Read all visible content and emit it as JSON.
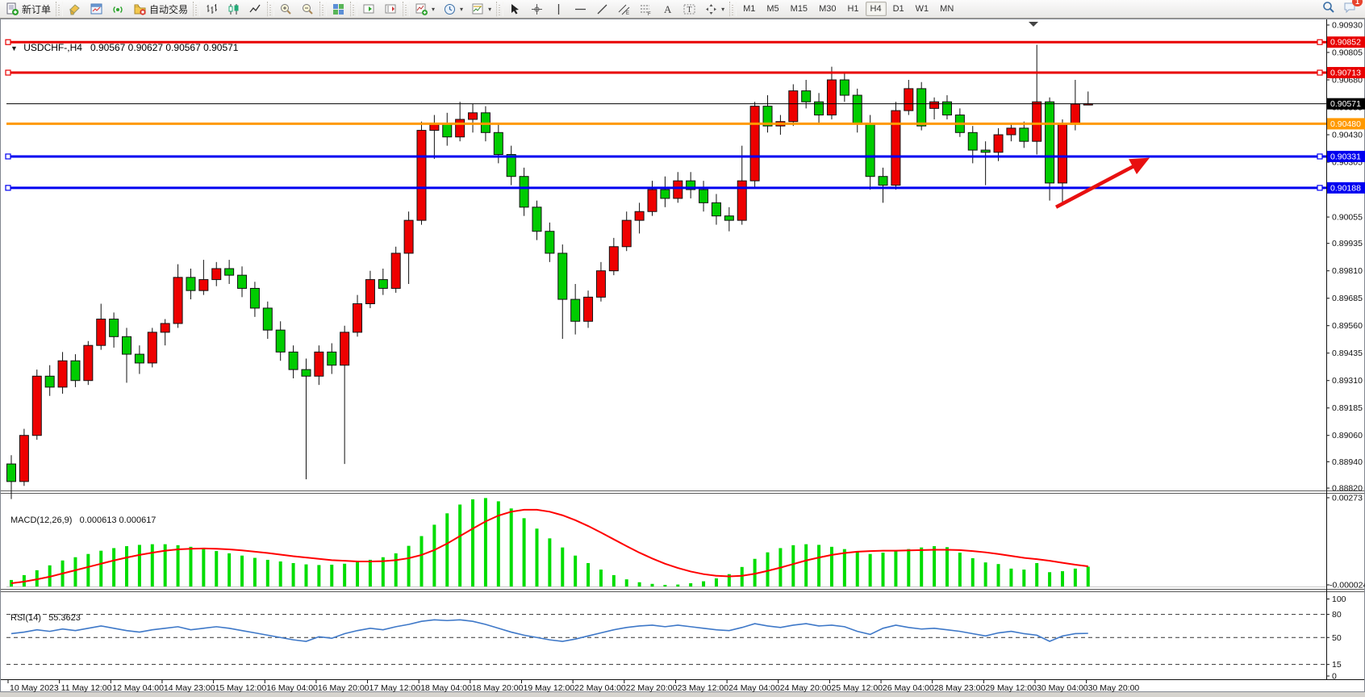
{
  "toolbar": {
    "new_order_label": "新订单",
    "autotrading_label": "自动交易",
    "groups": [
      {
        "items": [
          {
            "icon": "new-order-icon",
            "label_key": "new_order_label"
          }
        ]
      },
      {
        "items": [
          {
            "icon": "styles-icon"
          },
          {
            "icon": "chart-window-icon"
          },
          {
            "icon": "signal-icon"
          },
          {
            "icon": "autotrading-icon",
            "label_key": "autotrading_label"
          }
        ]
      },
      {
        "items": [
          {
            "icon": "bar-chart-icon"
          },
          {
            "icon": "candlestick-icon"
          },
          {
            "icon": "line-chart-icon"
          }
        ]
      },
      {
        "items": [
          {
            "icon": "zoom-in-icon"
          },
          {
            "icon": "zoom-out-icon"
          }
        ]
      },
      {
        "items": [
          {
            "icon": "tile-windows-icon"
          }
        ]
      },
      {
        "items": [
          {
            "icon": "auto-scroll-icon"
          },
          {
            "icon": "chart-shift-icon"
          }
        ]
      },
      {
        "items": [
          {
            "icon": "indicators-icon",
            "dropdown": true
          },
          {
            "icon": "periods-icon",
            "dropdown": true
          },
          {
            "icon": "template-icon",
            "dropdown": true
          }
        ]
      },
      {
        "items": [
          {
            "icon": "cursor-icon"
          },
          {
            "icon": "crosshair-icon"
          },
          {
            "icon": "vline-icon"
          },
          {
            "icon": "hline-icon"
          },
          {
            "icon": "trendline-icon"
          },
          {
            "icon": "channel-icon"
          },
          {
            "icon": "fibo-icon"
          },
          {
            "icon": "text-icon"
          },
          {
            "icon": "label-icon"
          },
          {
            "icon": "shapes-icon",
            "dropdown": true
          }
        ]
      }
    ],
    "timeframes": [
      {
        "label": "M1"
      },
      {
        "label": "M5"
      },
      {
        "label": "M15"
      },
      {
        "label": "M30"
      },
      {
        "label": "H1"
      },
      {
        "label": "H4",
        "active": true
      },
      {
        "label": "D1"
      },
      {
        "label": "W1"
      },
      {
        "label": "MN"
      }
    ],
    "chat_badge": "1"
  },
  "chart": {
    "title": "USDCHF-,H4",
    "ohlc_text": "0.90567 0.90627 0.90567 0.90571"
  },
  "chart_data": {
    "type": "candlestick",
    "symbol": "USDCHF-",
    "period": "H4",
    "current": {
      "open": "0.90567",
      "high": "0.90627",
      "low": "0.90567",
      "close": "0.90571"
    },
    "colors": {
      "bull": "#ee0000",
      "bear": "#00cc00",
      "wick": "#111111",
      "macd_hist": "#00dd00",
      "macd_signal": "#ff0000",
      "rsi_line": "#3e78c8",
      "hline_red": "#e80000",
      "hline_blue": "#0000f0",
      "hline_orange": "#ff9900",
      "bid_line": "#000000",
      "arrow": "#e81010",
      "bull_badge": "#e80000",
      "bear_badge": "#0000f0"
    },
    "y_axis": {
      "ticks": [
        0.9093,
        0.90805,
        0.9068,
        0.90555,
        0.9043,
        0.90305,
        0.9018,
        0.90055,
        0.89935,
        0.8981,
        0.89685,
        0.8956,
        0.89435,
        0.8931,
        0.89185,
        0.8906,
        0.8894,
        0.8882
      ]
    },
    "x_labels": [
      "10 May 2023",
      "11 May 12:00",
      "12 May 04:00",
      "14 May 23:00",
      "15 May 12:00",
      "16 May 04:00",
      "16 May 20:00",
      "17 May 12:00",
      "18 May 04:00",
      "18 May 20:00",
      "19 May 12:00",
      "22 May 04:00",
      "22 May 20:00",
      "23 May 12:00",
      "24 May 04:00",
      "24 May 20:00",
      "25 May 12:00",
      "26 May 04:00",
      "28 May 23:00",
      "29 May 12:00",
      "30 May 04:00",
      "30 May 20:00"
    ],
    "hlines": [
      {
        "price": 0.90852,
        "label": "0.90852",
        "color": "red",
        "width": 3,
        "handles": true
      },
      {
        "price": 0.90713,
        "label": "0.90713",
        "color": "red",
        "width": 3,
        "handles": true
      },
      {
        "price": 0.90571,
        "label": "0.90571",
        "color": "black",
        "width": 1,
        "handles": false
      },
      {
        "price": 0.9048,
        "label": "0.90480",
        "color": "orange",
        "width": 3,
        "handles": false
      },
      {
        "price": 0.90331,
        "label": "0.90331",
        "color": "blue",
        "width": 3,
        "handles": true
      },
      {
        "price": 0.90188,
        "label": "0.90188",
        "color": "blue",
        "width": 3,
        "handles": true
      }
    ],
    "arrow": {
      "from": {
        "bar": 81.5,
        "price": 0.901
      },
      "to": {
        "bar": 88.8,
        "price": 0.90325
      }
    },
    "candles": [
      [
        0.8893,
        0.8897,
        0.8877,
        0.8885
      ],
      [
        0.8885,
        0.8909,
        0.8883,
        0.8906
      ],
      [
        0.8906,
        0.8936,
        0.8904,
        0.8933
      ],
      [
        0.8933,
        0.8938,
        0.8924,
        0.8928
      ],
      [
        0.8928,
        0.8944,
        0.8925,
        0.894
      ],
      [
        0.894,
        0.8943,
        0.8928,
        0.8931
      ],
      [
        0.8931,
        0.8949,
        0.8929,
        0.8947
      ],
      [
        0.8947,
        0.8966,
        0.8945,
        0.8959
      ],
      [
        0.8959,
        0.8962,
        0.8946,
        0.8951
      ],
      [
        0.8951,
        0.8955,
        0.893,
        0.8943
      ],
      [
        0.8943,
        0.8947,
        0.8934,
        0.8939
      ],
      [
        0.8939,
        0.8955,
        0.8937,
        0.8953
      ],
      [
        0.8953,
        0.8959,
        0.8947,
        0.8957
      ],
      [
        0.8957,
        0.8984,
        0.8955,
        0.8978
      ],
      [
        0.8978,
        0.8982,
        0.8968,
        0.8972
      ],
      [
        0.8972,
        0.8986,
        0.897,
        0.8977
      ],
      [
        0.8977,
        0.8985,
        0.8974,
        0.8982
      ],
      [
        0.8982,
        0.8986,
        0.8975,
        0.8979
      ],
      [
        0.8979,
        0.8983,
        0.8969,
        0.8973
      ],
      [
        0.8973,
        0.8976,
        0.896,
        0.8964
      ],
      [
        0.8964,
        0.8967,
        0.895,
        0.8954
      ],
      [
        0.8954,
        0.8958,
        0.894,
        0.8944
      ],
      [
        0.8944,
        0.8947,
        0.8932,
        0.8936
      ],
      [
        0.8936,
        0.8941,
        0.8886,
        0.8933
      ],
      [
        0.8933,
        0.8947,
        0.8929,
        0.8944
      ],
      [
        0.8944,
        0.8948,
        0.8934,
        0.8938
      ],
      [
        0.8938,
        0.8956,
        0.8893,
        0.8953
      ],
      [
        0.8953,
        0.897,
        0.8951,
        0.8966
      ],
      [
        0.8966,
        0.8981,
        0.8964,
        0.8977
      ],
      [
        0.8977,
        0.8982,
        0.897,
        0.8973
      ],
      [
        0.8973,
        0.8992,
        0.8971,
        0.8989
      ],
      [
        0.8989,
        0.9008,
        0.8975,
        0.9004
      ],
      [
        0.9004,
        0.9049,
        0.9002,
        0.9045
      ],
      [
        0.9045,
        0.9052,
        0.9032,
        0.9048
      ],
      [
        0.9048,
        0.9053,
        0.9038,
        0.9042
      ],
      [
        0.9042,
        0.9058,
        0.904,
        0.905
      ],
      [
        0.905,
        0.9057,
        0.9044,
        0.9053
      ],
      [
        0.9053,
        0.9056,
        0.904,
        0.9044
      ],
      [
        0.9044,
        0.9048,
        0.903,
        0.9034
      ],
      [
        0.9034,
        0.9038,
        0.902,
        0.9024
      ],
      [
        0.9024,
        0.9028,
        0.9006,
        0.901
      ],
      [
        0.901,
        0.9013,
        0.8995,
        0.8999
      ],
      [
        0.8999,
        0.9003,
        0.8985,
        0.8989
      ],
      [
        0.8989,
        0.8993,
        0.895,
        0.8968
      ],
      [
        0.8968,
        0.8975,
        0.8952,
        0.8958
      ],
      [
        0.8958,
        0.8972,
        0.8955,
        0.8969
      ],
      [
        0.8969,
        0.8985,
        0.8967,
        0.8981
      ],
      [
        0.8981,
        0.8996,
        0.8979,
        0.8992
      ],
      [
        0.8992,
        0.9008,
        0.899,
        0.9004
      ],
      [
        0.9004,
        0.9012,
        0.8998,
        0.9008
      ],
      [
        0.9008,
        0.9022,
        0.9006,
        0.9018
      ],
      [
        0.9018,
        0.9024,
        0.901,
        0.9014
      ],
      [
        0.9014,
        0.9026,
        0.9012,
        0.9022
      ],
      [
        0.9022,
        0.9026,
        0.9014,
        0.9018
      ],
      [
        0.9018,
        0.9022,
        0.9008,
        0.9012
      ],
      [
        0.9012,
        0.9016,
        0.9002,
        0.9006
      ],
      [
        0.9006,
        0.901,
        0.8999,
        0.9004
      ],
      [
        0.9004,
        0.9038,
        0.9002,
        0.9022
      ],
      [
        0.9022,
        0.9058,
        0.9019,
        0.9056
      ],
      [
        0.9056,
        0.9061,
        0.9044,
        0.9047
      ],
      [
        0.9047,
        0.9052,
        0.9043,
        0.9049
      ],
      [
        0.9049,
        0.9066,
        0.9047,
        0.9063
      ],
      [
        0.9063,
        0.9068,
        0.9055,
        0.9058
      ],
      [
        0.9058,
        0.9062,
        0.9048,
        0.9052
      ],
      [
        0.9052,
        0.9074,
        0.905,
        0.9068
      ],
      [
        0.9068,
        0.9071,
        0.9058,
        0.9061
      ],
      [
        0.9061,
        0.9064,
        0.9044,
        0.9048
      ],
      [
        0.9048,
        0.9052,
        0.9018,
        0.9024
      ],
      [
        0.9024,
        0.9028,
        0.9012,
        0.902
      ],
      [
        0.902,
        0.9058,
        0.9018,
        0.9054
      ],
      [
        0.9054,
        0.9068,
        0.9052,
        0.9064
      ],
      [
        0.9064,
        0.9067,
        0.9045,
        0.9047
      ],
      [
        0.9055,
        0.906,
        0.905,
        0.9058
      ],
      [
        0.9058,
        0.9061,
        0.905,
        0.9052
      ],
      [
        0.9052,
        0.9055,
        0.9042,
        0.9044
      ],
      [
        0.9044,
        0.9047,
        0.903,
        0.9036
      ],
      [
        0.9036,
        0.904,
        0.902,
        0.9035
      ],
      [
        0.9035,
        0.9046,
        0.9031,
        0.9043
      ],
      [
        0.9043,
        0.9048,
        0.904,
        0.9046
      ],
      [
        0.9046,
        0.9049,
        0.9037,
        0.904
      ],
      [
        0.904,
        0.9084,
        0.9034,
        0.9058
      ],
      [
        0.9058,
        0.906,
        0.9013,
        0.9021
      ],
      [
        0.9021,
        0.905,
        0.9012,
        0.9048
      ],
      [
        0.9048,
        0.9068,
        0.9045,
        0.9057
      ],
      [
        0.90567,
        0.90627,
        0.90567,
        0.90571
      ]
    ],
    "macd": {
      "name": "MACD(12,26,9)",
      "values_text": "0.000613 0.000617",
      "axis_max": "0.00273",
      "axis_min": "-0.000024",
      "histogram": [
        0.0002,
        0.00035,
        0.0005,
        0.00065,
        0.0008,
        0.0009,
        0.001,
        0.0011,
        0.00118,
        0.00124,
        0.00128,
        0.0013,
        0.0013,
        0.00127,
        0.00122,
        0.00116,
        0.00109,
        0.00102,
        0.00095,
        0.00088,
        0.00082,
        0.00077,
        0.00072,
        0.00068,
        0.00066,
        0.00067,
        0.0007,
        0.00075,
        0.00082,
        0.0009,
        0.00102,
        0.00125,
        0.00155,
        0.0019,
        0.00225,
        0.00252,
        0.00268,
        0.00272,
        0.00262,
        0.0024,
        0.0021,
        0.00178,
        0.00148,
        0.0012,
        0.00095,
        0.00072,
        0.00052,
        0.00035,
        0.00022,
        0.00013,
        8e-05,
        5e-05,
        6e-05,
        0.0001,
        0.00016,
        0.00025,
        0.00038,
        0.0006,
        0.00085,
        0.00105,
        0.00118,
        0.00127,
        0.0013,
        0.00128,
        0.00122,
        0.00115,
        0.00108,
        0.001,
        0.00104,
        0.0011,
        0.00115,
        0.0012,
        0.00124,
        0.00121,
        0.00104,
        0.00087,
        0.00074,
        0.00069,
        0.00055,
        0.00052,
        0.00072,
        0.00044,
        0.00047,
        0.00055,
        0.00061
      ],
      "signal": [
        0.0001,
        0.00015,
        0.00022,
        0.0003,
        0.0004,
        0.0005,
        0.0006,
        0.0007,
        0.0008,
        0.00089,
        0.00097,
        0.00104,
        0.0011,
        0.00114,
        0.00116,
        0.00117,
        0.00116,
        0.00114,
        0.00111,
        0.00107,
        0.00103,
        0.00098,
        0.00093,
        0.00089,
        0.00085,
        0.00081,
        0.00079,
        0.00077,
        0.00077,
        0.00078,
        0.00081,
        0.00087,
        0.00097,
        0.00112,
        0.00132,
        0.00155,
        0.00178,
        0.002,
        0.00218,
        0.0023,
        0.00236,
        0.00236,
        0.0023,
        0.00219,
        0.00204,
        0.00186,
        0.00166,
        0.00145,
        0.00124,
        0.00104,
        0.00086,
        0.0007,
        0.00057,
        0.00046,
        0.00038,
        0.00033,
        0.00031,
        0.00033,
        0.00039,
        0.00048,
        0.00058,
        0.00069,
        0.0008,
        0.00089,
        0.00097,
        0.00103,
        0.00107,
        0.00109,
        0.0011,
        0.0011,
        0.00111,
        0.00112,
        0.00113,
        0.00113,
        0.00112,
        0.00109,
        0.00105,
        0.001,
        0.00094,
        0.00088,
        0.00084,
        0.00079,
        0.00073,
        0.00067,
        0.00062
      ]
    },
    "rsi": {
      "name": "RSI(14)",
      "value_text": "55.3623",
      "levels": [
        100,
        80,
        50,
        15,
        0
      ],
      "dashed_levels": [
        80,
        50,
        15
      ],
      "values": [
        55,
        57,
        60,
        58,
        61,
        59,
        62,
        65,
        62,
        59,
        57,
        60,
        62,
        64,
        60,
        62,
        64,
        62,
        59,
        56,
        53,
        50,
        47,
        45,
        51,
        49,
        55,
        59,
        62,
        60,
        64,
        67,
        71,
        73,
        72,
        73,
        71,
        67,
        62,
        57,
        53,
        50,
        47,
        45,
        48,
        52,
        56,
        60,
        63,
        65,
        66,
        64,
        66,
        64,
        62,
        60,
        59,
        63,
        68,
        65,
        63,
        66,
        68,
        65,
        66,
        64,
        58,
        54,
        62,
        66,
        63,
        61,
        62,
        60,
        58,
        55,
        52,
        56,
        58,
        55,
        53,
        45,
        52,
        55,
        55.36
      ]
    }
  }
}
